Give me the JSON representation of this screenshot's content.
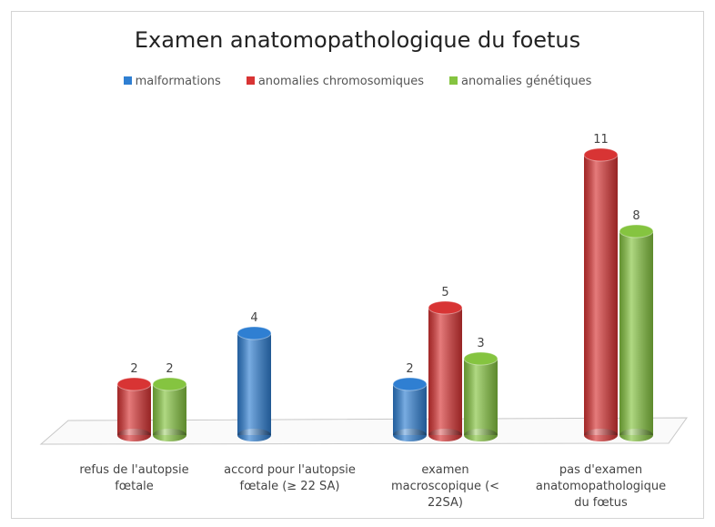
{
  "chart_data": {
    "type": "bar3d-cylinder",
    "title": "Examen anatomopathologique du foetus",
    "categories": [
      "refus de l'autopsie fœtale",
      "accord pour l'autopsie fœtale (≥ 22 SA)",
      "examen macroscopique (< 22SA)",
      "pas d'examen anatomopathologique du fœtus"
    ],
    "series": [
      {
        "name": "malformations",
        "color": "#2f7fd2",
        "values": [
          null,
          4,
          2,
          null
        ]
      },
      {
        "name": "anomalies chromosomiques",
        "color": "#d83434",
        "values": [
          2,
          null,
          5,
          11
        ]
      },
      {
        "name": "anomalies génétiques",
        "color": "#85c440",
        "values": [
          2,
          null,
          3,
          8
        ]
      }
    ],
    "legend": "top"
  }
}
